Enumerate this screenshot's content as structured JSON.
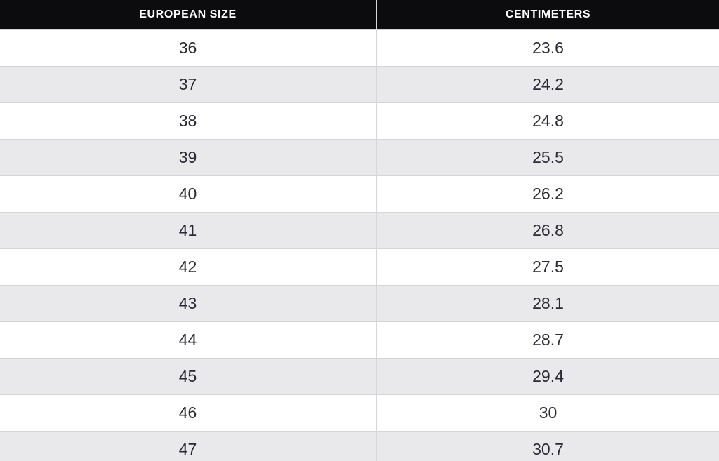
{
  "colors": {
    "header_bg": "#0c0b0d",
    "header_text": "#ffffff",
    "row_bg": "#ffffff",
    "row_alt_bg": "#e9e8ea",
    "cell_text": "#2b2933",
    "border": "#d6d4d7"
  },
  "chart_data": {
    "type": "table",
    "columns": [
      "EUROPEAN SIZE",
      "CENTIMETERS"
    ],
    "rows": [
      [
        "36",
        "23.6"
      ],
      [
        "37",
        "24.2"
      ],
      [
        "38",
        "24.8"
      ],
      [
        "39",
        "25.5"
      ],
      [
        "40",
        "26.2"
      ],
      [
        "41",
        "26.8"
      ],
      [
        "42",
        "27.5"
      ],
      [
        "43",
        "28.1"
      ],
      [
        "44",
        "28.7"
      ],
      [
        "45",
        "29.4"
      ],
      [
        "46",
        "30"
      ],
      [
        "47",
        "30.7"
      ]
    ]
  }
}
